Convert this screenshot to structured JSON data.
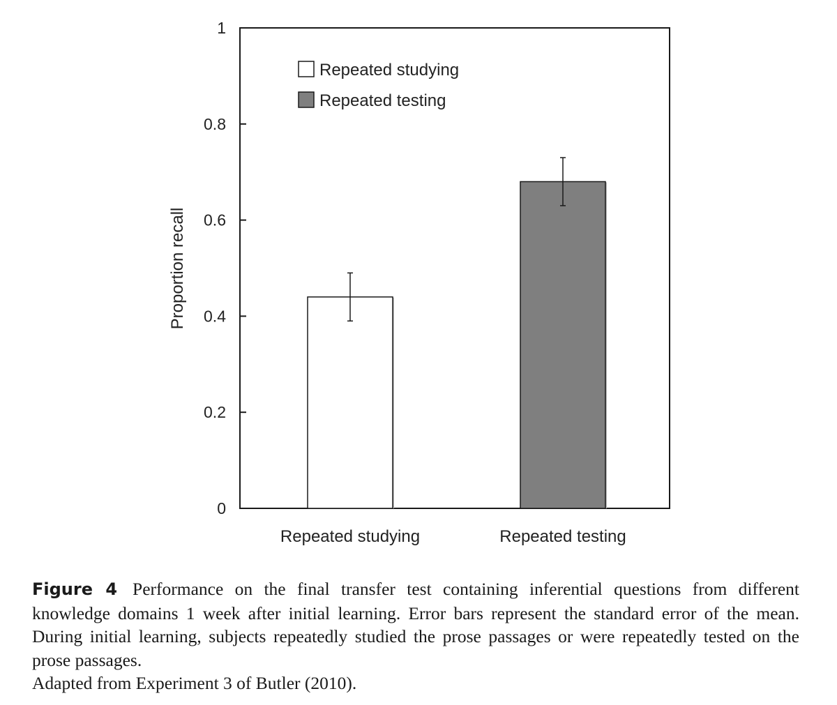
{
  "chart_data": {
    "type": "bar",
    "ylabel": "Proportion recall",
    "xlabel": "",
    "categories": [
      "Repeated studying",
      "Repeated testing"
    ],
    "values": [
      0.44,
      0.68
    ],
    "error": [
      0.05,
      0.05
    ],
    "bar_colors": [
      "#ffffff",
      "#7f7f7f"
    ],
    "ylim": [
      0,
      1
    ],
    "yticks": [
      "0",
      "0.2",
      "0.4",
      "0.6",
      "0.8",
      "1"
    ],
    "grid": false,
    "legend": {
      "placement": "top-left",
      "entries": [
        {
          "label": "Repeated studying",
          "color": "#ffffff"
        },
        {
          "label": "Repeated testing",
          "color": "#7f7f7f"
        }
      ]
    }
  },
  "caption": {
    "label": "Figure 4",
    "text": "Performance on the final transfer test containing inferential questions from different knowledge domains 1 week after initial learning. Error bars represent the standard error of the mean. During initial learning, subjects repeatedly studied the prose passages or were repeatedly tested on the prose passages.",
    "source": "Adapted from Experiment 3 of Butler (2010)."
  }
}
